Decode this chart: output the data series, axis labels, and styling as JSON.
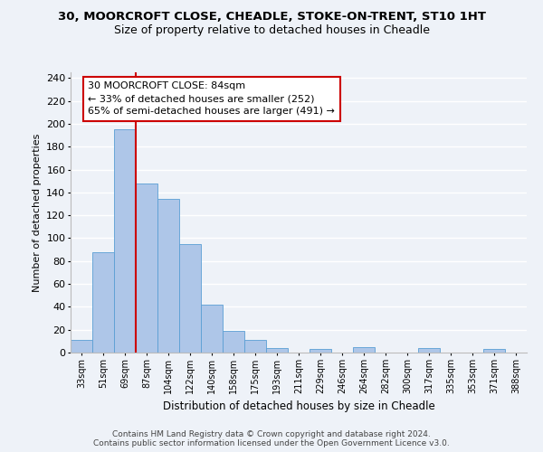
{
  "title": "30, MOORCROFT CLOSE, CHEADLE, STOKE-ON-TRENT, ST10 1HT",
  "subtitle": "Size of property relative to detached houses in Cheadle",
  "xlabel": "Distribution of detached houses by size in Cheadle",
  "ylabel": "Number of detached properties",
  "bar_labels": [
    "33sqm",
    "51sqm",
    "69sqm",
    "87sqm",
    "104sqm",
    "122sqm",
    "140sqm",
    "158sqm",
    "175sqm",
    "193sqm",
    "211sqm",
    "229sqm",
    "246sqm",
    "264sqm",
    "282sqm",
    "300sqm",
    "317sqm",
    "335sqm",
    "353sqm",
    "371sqm",
    "388sqm"
  ],
  "bar_values": [
    11,
    88,
    195,
    148,
    134,
    95,
    42,
    19,
    11,
    4,
    0,
    3,
    0,
    5,
    0,
    0,
    4,
    0,
    0,
    3,
    0
  ],
  "bar_color": "#aec6e8",
  "bar_edge_color": "#5a9fd4",
  "vline_color": "#cc0000",
  "annotation_line1": "30 MOORCROFT CLOSE: 84sqm",
  "annotation_line2": "← 33% of detached houses are smaller (252)",
  "annotation_line3": "65% of semi-detached houses are larger (491) →",
  "annotation_box_color": "#ffffff",
  "annotation_box_edge": "#cc0000",
  "ylim": [
    0,
    245
  ],
  "yticks": [
    0,
    20,
    40,
    60,
    80,
    100,
    120,
    140,
    160,
    180,
    200,
    220,
    240
  ],
  "footer_line1": "Contains HM Land Registry data © Crown copyright and database right 2024.",
  "footer_line2": "Contains public sector information licensed under the Open Government Licence v3.0.",
  "bg_color": "#eef2f8"
}
